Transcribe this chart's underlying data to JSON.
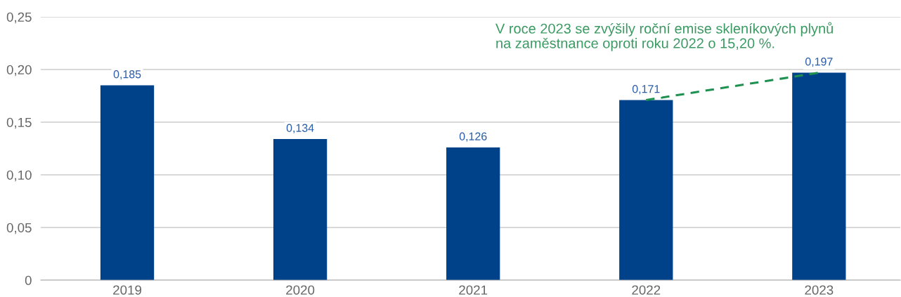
{
  "chart_data": {
    "type": "bar",
    "categories": [
      "2019",
      "2020",
      "2021",
      "2022",
      "2023"
    ],
    "series": [
      {
        "color": "#00428a",
        "values": [
          0.185,
          0.134,
          0.126,
          0.171,
          0.197
        ],
        "value_labels": [
          "0,185",
          "0,134",
          "0,126",
          "0,171",
          "0,197"
        ]
      },
      {
        "type": "line",
        "color": "#1e9150",
        "line_style": "dashed",
        "values": [
          null,
          null,
          null,
          0.171,
          0.197
        ]
      }
    ],
    "ylim": [
      0,
      0.25
    ],
    "yticks": [
      0,
      {
        "value": 0.05,
        "label": "0,05"
      },
      {
        "value": 0.1,
        "label": "0,10"
      },
      {
        "value": 0.15,
        "label": "0,15"
      },
      {
        "value": 0.2,
        "label": "0,20"
      },
      {
        "value": 0.25,
        "label": "0,25"
      }
    ],
    "grid": "y",
    "annotations": [
      "V roce 2023 se zvýšily roční emise skleníkových plynů\nna zaměstnance oproti roku 2022 o 15,20 %."
    ]
  }
}
